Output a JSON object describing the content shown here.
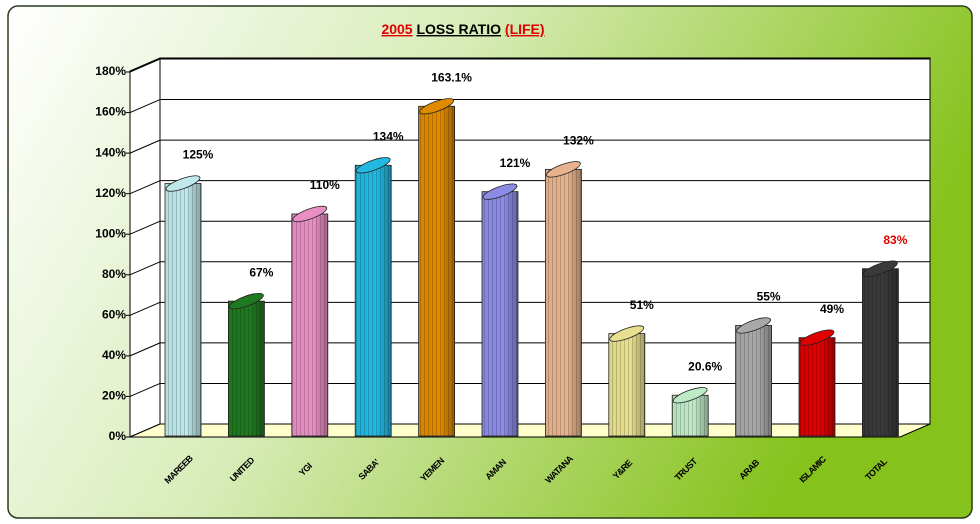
{
  "chart_data": {
    "type": "bar",
    "title": [
      "2005",
      "LOSS RATIO",
      "(LIFE)"
    ],
    "title_colors": [
      "#e00000",
      "#000000",
      "#e00000"
    ],
    "categories": [
      "MAREEB",
      "UNITED",
      "YGI",
      "SABA'",
      "YEMEN",
      "AMAN",
      "WATANA",
      "Y&RE",
      "TRUST",
      "ARAB",
      "ISLAMIC",
      "TOTAL"
    ],
    "values": [
      125,
      67,
      110,
      134,
      163.1,
      121,
      132,
      51,
      20.6,
      55,
      49,
      83
    ],
    "value_labels": [
      "125%",
      "67%",
      "110%",
      "134%",
      "163.1%",
      "121%",
      "132%",
      "51%",
      "20.6%",
      "55%",
      "49%",
      "83%"
    ],
    "colors": [
      "#bfe8ea",
      "#1e7a1e",
      "#e98fc4",
      "#22b8e2",
      "#e08a00",
      "#8c8ce6",
      "#e6b38e",
      "#e8e08e",
      "#bfeac6",
      "#a8a8a8",
      "#e00000",
      "#3a3a3a"
    ],
    "value_label_colors": [
      "#000000",
      "#000000",
      "#000000",
      "#000000",
      "#000000",
      "#000000",
      "#000000",
      "#000000",
      "#000000",
      "#000000",
      "#000000",
      "#e00000"
    ],
    "ylim": [
      0,
      180
    ],
    "yticks": [
      {
        "value": 0,
        "label": "0%"
      },
      {
        "value": 20,
        "label": "20%"
      },
      {
        "value": 40,
        "label": "40%"
      },
      {
        "value": 60,
        "label": "60%"
      },
      {
        "value": 80,
        "label": "80%"
      },
      {
        "value": 100,
        "label": "100%"
      },
      {
        "value": 120,
        "label": "120%"
      },
      {
        "value": 140,
        "label": "140%"
      },
      {
        "value": 160,
        "label": "160%"
      },
      {
        "value": 180,
        "label": "180%"
      }
    ],
    "grid": true
  }
}
